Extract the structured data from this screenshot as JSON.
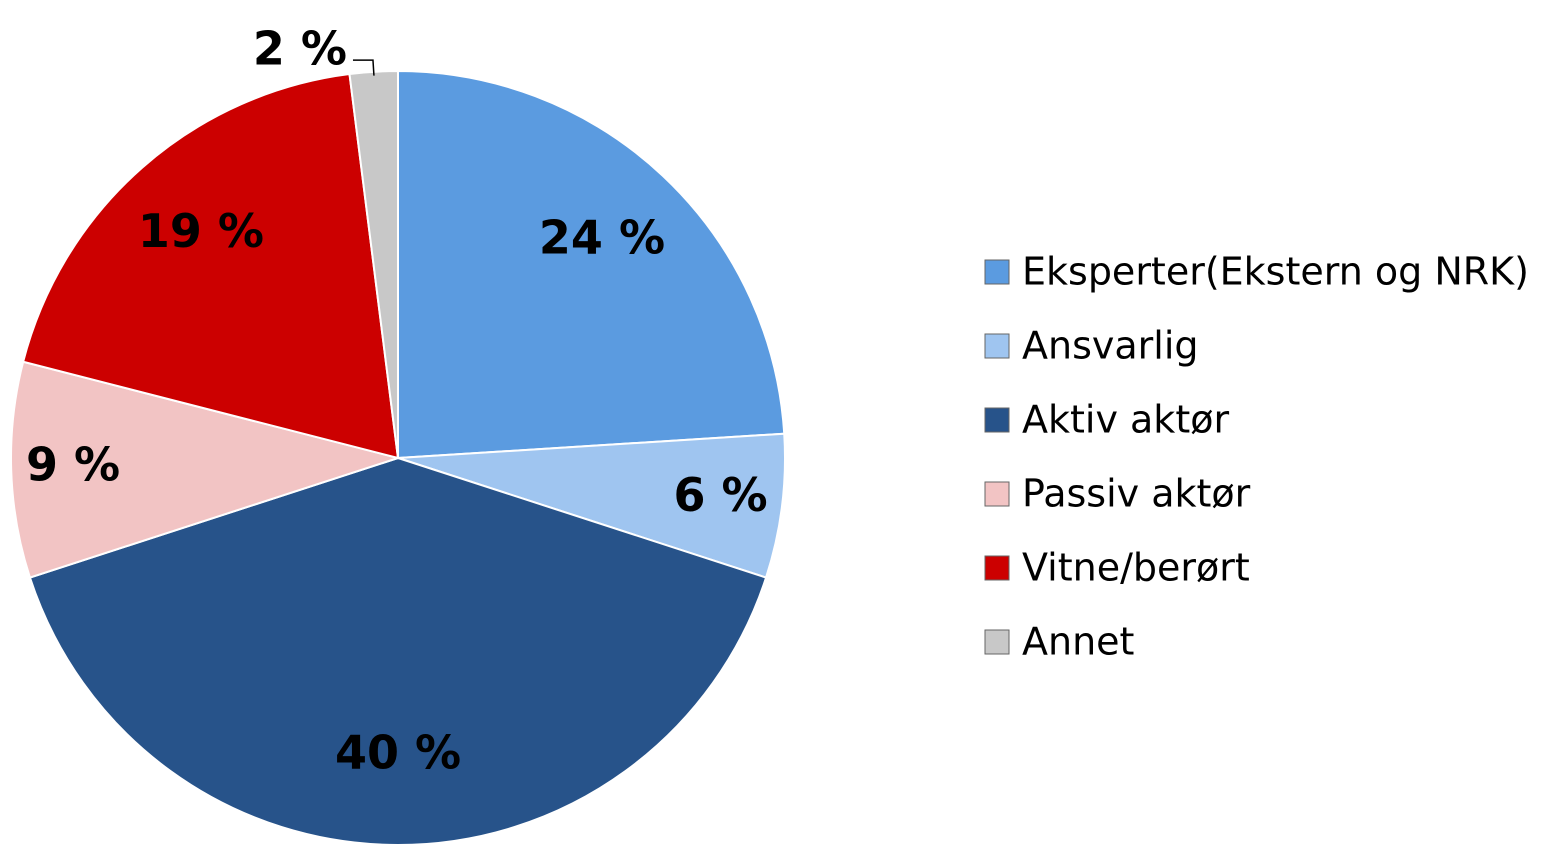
{
  "chart_data": {
    "type": "pie",
    "categories": [
      "Eksperter(Ekstern og NRK)",
      "Ansvarlig",
      "Aktiv aktør",
      "Passiv aktør",
      "Vitne/berørt",
      "Annet"
    ],
    "values": [
      24,
      6,
      40,
      9,
      19,
      2
    ],
    "value_labels": [
      "24 %",
      "6 %",
      "40 %",
      "9 %",
      "19 %",
      "2 %"
    ],
    "colors": [
      "#5b9be0",
      "#9fc5f0",
      "#27538a",
      "#f2c4c4",
      "#cc0000",
      "#c8c8c8"
    ],
    "legend": "right"
  }
}
